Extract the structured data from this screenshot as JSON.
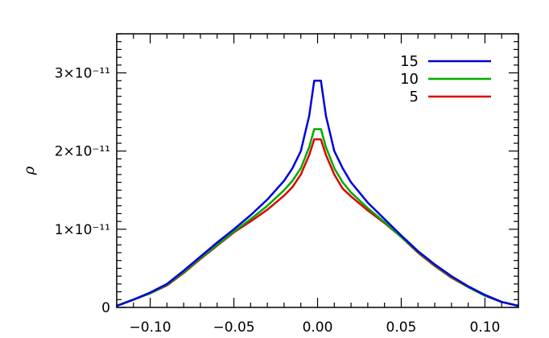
{
  "chart_data": {
    "type": "line",
    "title": "",
    "xlabel": "",
    "ylabel": "ρ",
    "xlim": [
      -0.12,
      0.12
    ],
    "ylim": [
      0,
      3.5e-11
    ],
    "grid": false,
    "legend_position": "top-right",
    "x_ticks": [
      {
        "value": -0.1,
        "label": "−0.10"
      },
      {
        "value": -0.05,
        "label": "−0.05"
      },
      {
        "value": 0.0,
        "label": "0.00"
      },
      {
        "value": 0.05,
        "label": "0.05"
      },
      {
        "value": 0.1,
        "label": "0.10"
      }
    ],
    "y_ticks": [
      {
        "value": 0,
        "label": "0"
      },
      {
        "value": 1e-11,
        "label": "1×10⁻¹¹"
      },
      {
        "value": 2e-11,
        "label": "2×10⁻¹¹"
      },
      {
        "value": 3e-11,
        "label": "3×10⁻¹¹"
      }
    ],
    "series": [
      {
        "name": "15",
        "color": "#0000dd",
        "x": [
          -0.12,
          -0.11,
          -0.1,
          -0.09,
          -0.08,
          -0.07,
          -0.06,
          -0.05,
          -0.04,
          -0.03,
          -0.02,
          -0.015,
          -0.01,
          -0.005,
          -0.002,
          0.002,
          0.005,
          0.01,
          0.015,
          0.02,
          0.03,
          0.04,
          0.05,
          0.06,
          0.07,
          0.08,
          0.09,
          0.1,
          0.11,
          0.12
        ],
        "y": [
          2e-13,
          1e-12,
          1.9e-12,
          3e-12,
          4.7e-12,
          6.5e-12,
          8.3e-12,
          1e-11,
          1.18e-11,
          1.38e-11,
          1.62e-11,
          1.78e-11,
          2e-11,
          2.45e-11,
          2.9e-11,
          2.9e-11,
          2.45e-11,
          2e-11,
          1.78e-11,
          1.6e-11,
          1.34e-11,
          1.13e-11,
          9.2e-12,
          7.2e-12,
          5.5e-12,
          4e-12,
          2.7e-12,
          1.6e-12,
          7e-13,
          2e-13
        ]
      },
      {
        "name": "10",
        "color": "#00aa00",
        "x": [
          -0.12,
          -0.11,
          -0.1,
          -0.09,
          -0.08,
          -0.07,
          -0.06,
          -0.05,
          -0.04,
          -0.03,
          -0.02,
          -0.015,
          -0.01,
          -0.005,
          -0.002,
          0.002,
          0.005,
          0.01,
          0.015,
          0.02,
          0.03,
          0.04,
          0.05,
          0.06,
          0.07,
          0.08,
          0.09,
          0.1,
          0.11,
          0.12
        ],
        "y": [
          2e-13,
          1e-12,
          1.8e-12,
          2.9e-12,
          4.5e-12,
          6.3e-12,
          8e-12,
          9.7e-12,
          1.13e-11,
          1.3e-11,
          1.5e-11,
          1.62e-11,
          1.78e-11,
          2.05e-11,
          2.28e-11,
          2.28e-11,
          2.05e-11,
          1.78e-11,
          1.6e-11,
          1.47e-11,
          1.27e-11,
          1.09e-11,
          9e-12,
          7.1e-12,
          5.4e-12,
          3.9e-12,
          2.6e-12,
          1.5e-12,
          7e-13,
          2e-13
        ]
      },
      {
        "name": "5",
        "color": "#dd0000",
        "x": [
          -0.12,
          -0.11,
          -0.1,
          -0.09,
          -0.08,
          -0.07,
          -0.06,
          -0.05,
          -0.04,
          -0.03,
          -0.02,
          -0.015,
          -0.01,
          -0.005,
          -0.002,
          0.002,
          0.005,
          0.01,
          0.015,
          0.02,
          0.03,
          0.04,
          0.05,
          0.06,
          0.07,
          0.08,
          0.09,
          0.1,
          0.11,
          0.12
        ],
        "y": [
          2e-13,
          1e-12,
          1.8e-12,
          2.8e-12,
          4.4e-12,
          6.2e-12,
          7.9e-12,
          9.6e-12,
          1.1e-11,
          1.25e-11,
          1.43e-11,
          1.54e-11,
          1.7e-11,
          1.95e-11,
          2.15e-11,
          2.15e-11,
          1.95e-11,
          1.7e-11,
          1.52e-11,
          1.42e-11,
          1.24e-11,
          1.08e-11,
          9e-12,
          7e-12,
          5.3e-12,
          3.8e-12,
          2.6e-12,
          1.5e-12,
          7e-13,
          2e-13
        ]
      }
    ]
  }
}
